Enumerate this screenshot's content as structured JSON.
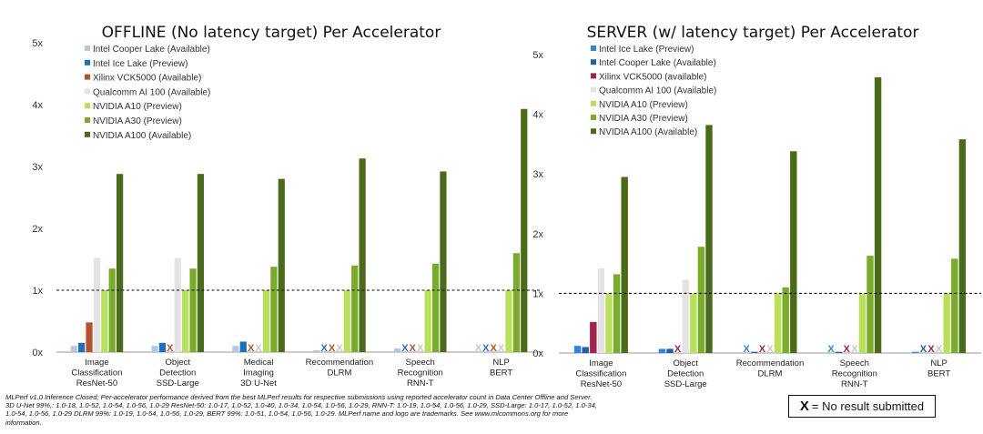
{
  "chart_data": [
    {
      "type": "bar",
      "title": "OFFLINE (No latency target) Per Accelerator",
      "ylim": [
        0,
        5
      ],
      "yticks": [
        "0x",
        "1x",
        "2x",
        "3x",
        "4x",
        "5x"
      ],
      "reference_line": 1,
      "categories": [
        [
          "Image",
          "Classification",
          "ResNet-50"
        ],
        [
          "Object",
          "Detection",
          "SSD-Large"
        ],
        [
          "Medical",
          "Imaging",
          "3D U-Net"
        ],
        [
          "Recommendation",
          "DLRM"
        ],
        [
          "Speech",
          "Recognition",
          "RNN-T"
        ],
        [
          "NLP",
          "BERT"
        ]
      ],
      "series": [
        {
          "name": "Intel Cooper Lake (Available)",
          "color": "#b4c7e7",
          "values": [
            0.1,
            0.1,
            0.1,
            0.03,
            0.06,
            null
          ]
        },
        {
          "name": "Intel Ice Lake (Preview)",
          "color": "#1f6fbf",
          "values": [
            0.15,
            0.15,
            0.17,
            null,
            null,
            null
          ]
        },
        {
          "name": "Xilinx VCK5000 (Available)",
          "color": "#b5532a",
          "values": [
            0.48,
            null,
            null,
            null,
            null,
            null
          ]
        },
        {
          "name": "Qualcomm AI 100 (Available)",
          "color": "#e3e3e3",
          "values": [
            1.52,
            1.52,
            null,
            null,
            null,
            null
          ]
        },
        {
          "name": "NVIDIA A10 (Preview)",
          "color": "#b8e05a",
          "values": [
            1.0,
            1.0,
            1.0,
            1.0,
            1.0,
            1.0
          ]
        },
        {
          "name": "NVIDIA A30 (Preview)",
          "color": "#7aab2a",
          "values": [
            1.35,
            1.35,
            1.38,
            1.4,
            1.43,
            1.6
          ]
        },
        {
          "name": "NVIDIA A100 (Available)",
          "color": "#4a6b1a",
          "values": [
            2.88,
            2.88,
            2.8,
            3.13,
            2.92,
            3.93
          ]
        }
      ]
    },
    {
      "type": "bar",
      "title": "SERVER (w/ latency target) Per Accelerator",
      "ylim": [
        0,
        5
      ],
      "yticks": [
        "0x",
        "1x",
        "2x",
        "3x",
        "4x",
        "5x"
      ],
      "reference_line": 1,
      "categories": [
        [
          "Image",
          "Classification",
          "ResNet-50"
        ],
        [
          "Object",
          "Detection",
          "SSD-Large"
        ],
        [
          "Recommendation",
          "DLRM"
        ],
        [
          "Speech",
          "Recognition",
          "RNN-T"
        ],
        [
          "NLP",
          "BERT"
        ]
      ],
      "series": [
        {
          "name": "Intel Ice Lake (Preview)",
          "color": "#2e86de",
          "values": [
            0.12,
            0.07,
            null,
            null,
            0.02
          ]
        },
        {
          "name": "Intel Cooper Lake (Available)",
          "color": "#1f5fa8",
          "values": [
            0.1,
            0.07,
            0.02,
            0.02,
            null
          ]
        },
        {
          "name": "Xilinx VCK5000 (available)",
          "color": "#a0224e",
          "values": [
            0.52,
            null,
            null,
            null,
            null
          ]
        },
        {
          "name": "Qualcomm AI 100 (Available)",
          "color": "#e3e3e3",
          "values": [
            1.42,
            1.23,
            null,
            null,
            null
          ]
        },
        {
          "name": "NVIDIA A10 (Preview)",
          "color": "#b8e05a",
          "values": [
            1.0,
            1.0,
            1.0,
            1.0,
            1.0
          ]
        },
        {
          "name": "NVIDIA A30 (Preview)",
          "color": "#7aab2a",
          "values": [
            1.32,
            1.78,
            1.1,
            1.63,
            1.58
          ]
        },
        {
          "name": "NVIDIA A100 (Available)",
          "color": "#4a6b1a",
          "values": [
            2.95,
            3.82,
            3.38,
            4.62,
            3.58
          ]
        }
      ]
    }
  ],
  "footnote": "MLPerf v1.0 Inference Closed; Per-accelerator performance derived from the best MLPerf results for respective submissions using reported accelerator count in Data Center Offline and Server. 3D U-Net 99%,: 1.0-18, 1.0-52, 1.0-54, 1.0-56, 1.0-29 ResNet-50: 1.0-17, 1.0-52, 1.0-40, 1.0-34, 1.0-54, 1.0-56, 1.0-29, RNN-T: 1.0-19, 1.0-54, 1.0-56, 1.0-29, SSD-Large: 1.0-17, 1.0-52, 1.0-34, 1.0-54, 1.0-56, 1.0-29 DLRM 99%: 1.0-19, 1.0-54, 1.0-56, 1.0-29, BERT 99%: 1.0-51, 1.0-54, 1.0-56, 1.0-29. MLPerf name and logo are trademarks. See www.mlcommons.org for more information.",
  "no_result": {
    "mark": "X",
    "label": "= No result submitted"
  }
}
